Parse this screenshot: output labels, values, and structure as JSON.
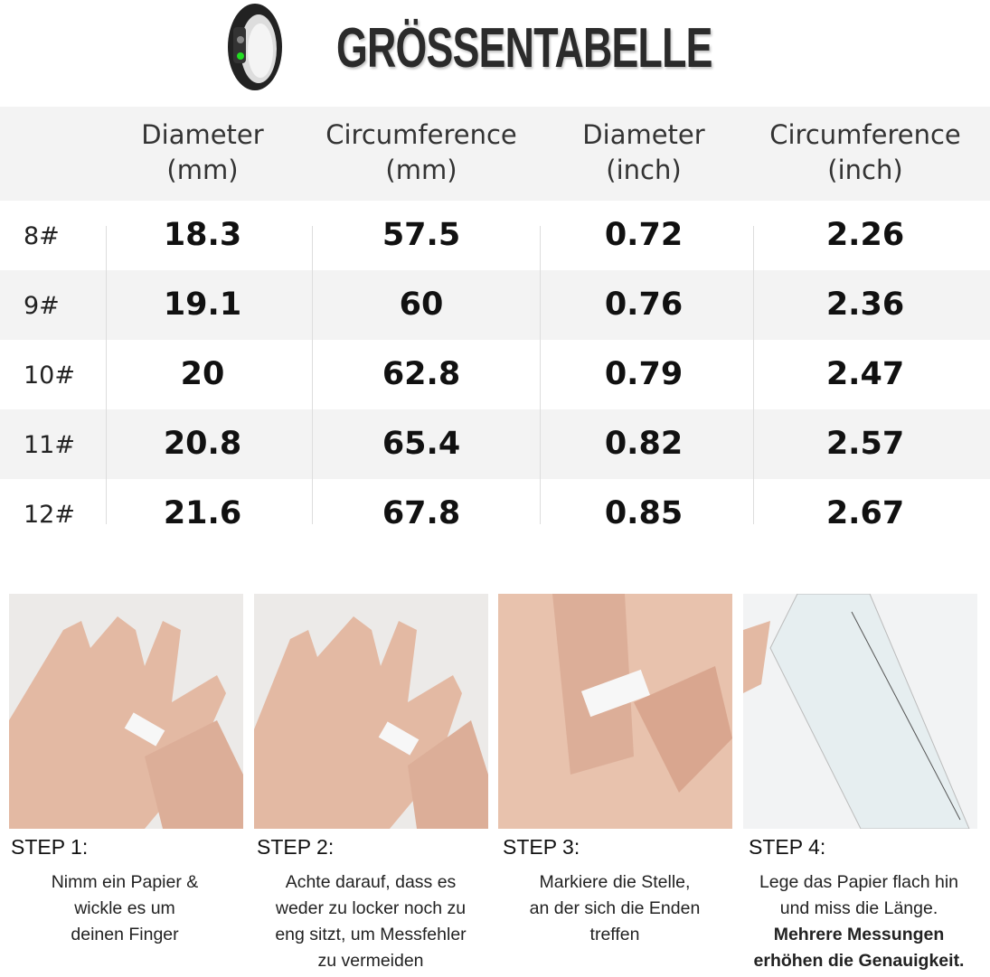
{
  "title": "GRÖSSENTABELLE",
  "table": {
    "headers": [
      [
        "Diameter",
        "(mm)"
      ],
      [
        "Circumference",
        "(mm)"
      ],
      [
        "Diameter",
        "(inch)"
      ],
      [
        "Circumference",
        "(inch)"
      ]
    ],
    "rows": [
      {
        "size": "8#",
        "values": [
          "18.3",
          "57.5",
          "0.72",
          "2.26"
        ]
      },
      {
        "size": "9#",
        "values": [
          "19.1",
          "60",
          "0.76",
          "2.36"
        ]
      },
      {
        "size": "10#",
        "values": [
          "20",
          "62.8",
          "0.79",
          "2.47"
        ]
      },
      {
        "size": "11#",
        "values": [
          "20.8",
          "65.4",
          "0.82",
          "2.57"
        ]
      },
      {
        "size": "12#",
        "values": [
          "21.6",
          "67.8",
          "0.85",
          "2.67"
        ]
      }
    ]
  },
  "steps": [
    {
      "label": "STEP 1:",
      "lines": [
        "Nimm ein Papier &",
        "wickle es um",
        "deinen Finger"
      ]
    },
    {
      "label": "STEP 2:",
      "lines": [
        "Achte darauf, dass es",
        "weder zu locker noch zu",
        "eng sitzt, um Messfehler",
        "zu vermeiden"
      ]
    },
    {
      "label": "STEP 3:",
      "lines": [
        "Markiere die Stelle,",
        "an der sich die Enden",
        "treffen"
      ]
    },
    {
      "label": "STEP 4:",
      "lines": [
        "Lege das Papier flach hin",
        "und miss die Länge."
      ],
      "bold_lines": [
        "Mehrere Messungen",
        "erhöhen die Genauigkeit."
      ]
    }
  ],
  "colors": {
    "row_alt": "#f3f3f3",
    "skin": "#e3b9a3",
    "paper": "#f7f7f7"
  }
}
